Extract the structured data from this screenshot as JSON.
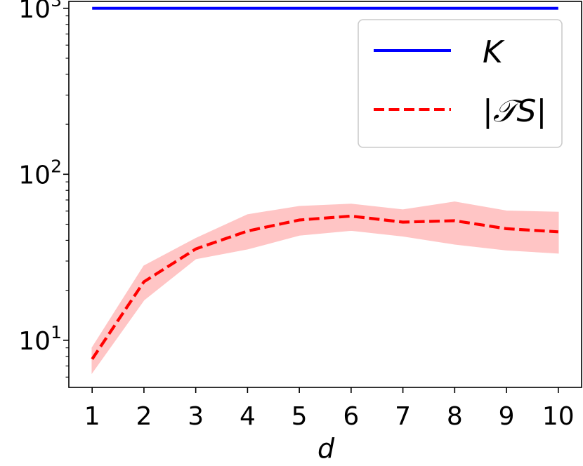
{
  "chart_data": {
    "type": "line",
    "xlabel": "d",
    "ylabel": "",
    "title": "",
    "x": [
      1,
      2,
      3,
      4,
      5,
      6,
      7,
      8,
      9,
      10
    ],
    "xlim": [
      0.55,
      10.45
    ],
    "ylim": [
      5.2,
      1100
    ],
    "yscale": "log",
    "grid": false,
    "legend_position": "top-right",
    "x_ticks": [
      "1",
      "2",
      "3",
      "4",
      "5",
      "6",
      "7",
      "8",
      "9",
      "10"
    ],
    "y_ticks": [
      {
        "value": 10,
        "base": "10",
        "exp": "1"
      },
      {
        "value": 100,
        "base": "10",
        "exp": "2"
      },
      {
        "value": 1000,
        "base": "10",
        "exp": "3"
      }
    ],
    "series": [
      {
        "name": "K",
        "style": "solid",
        "color": "#0000ff",
        "values": [
          1000,
          1000,
          1000,
          1000,
          1000,
          1000,
          1000,
          1000,
          1000,
          1000
        ]
      },
      {
        "name": "|𝒯S|",
        "style": "dashed",
        "color": "#ff0000",
        "band_color": "#ffbfbf",
        "values": [
          7.7,
          22.5,
          35.5,
          45.5,
          53,
          56,
          51.5,
          52.5,
          47,
          45
        ],
        "lower": [
          6.4,
          17.5,
          31,
          35.5,
          43,
          46,
          42.5,
          38,
          35,
          33.5
        ],
        "upper": [
          9.0,
          28,
          41,
          57,
          64,
          66,
          61,
          68,
          60,
          59
        ]
      }
    ]
  }
}
